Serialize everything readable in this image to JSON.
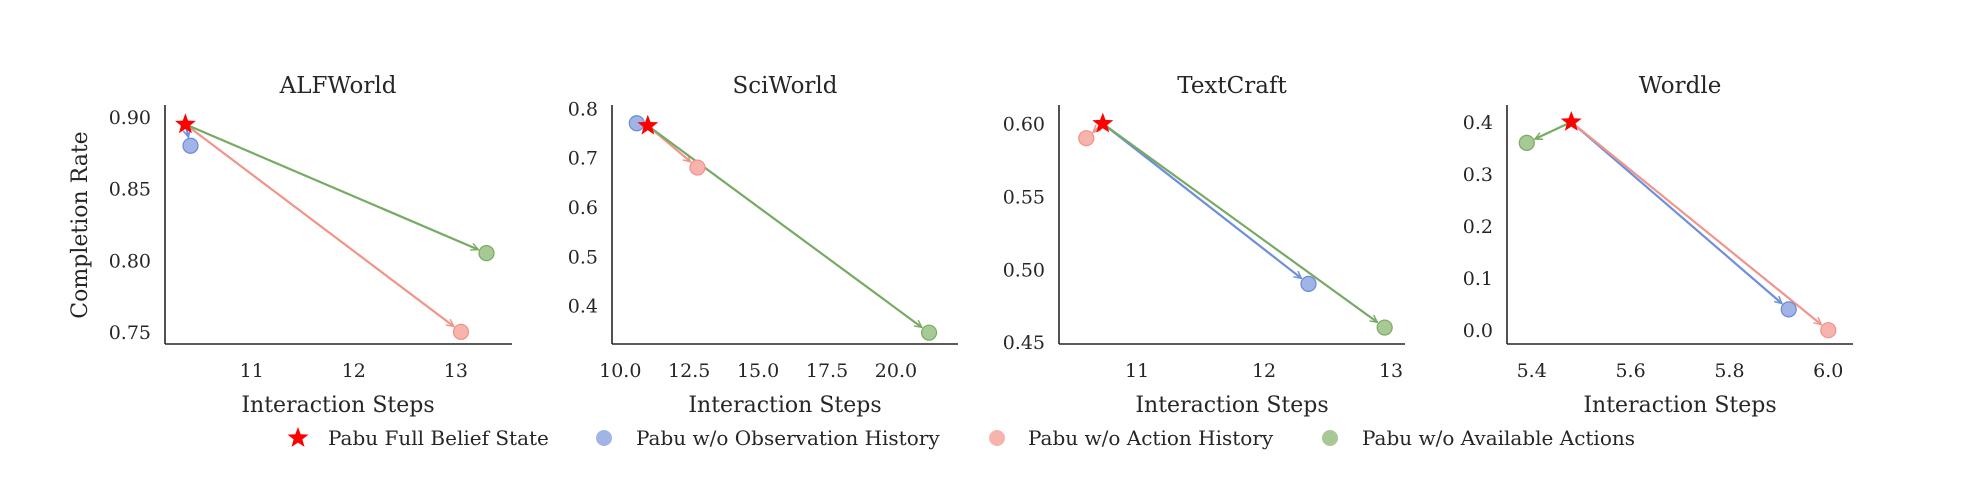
{
  "chart_data": [
    {
      "type": "scatter",
      "title": "ALFWorld",
      "xlabel": "Interaction Steps",
      "ylabel": "Completion Rate",
      "xticks": [
        11,
        12,
        13
      ],
      "xtick_labels": [
        "11",
        "12",
        "13"
      ],
      "yticks": [
        0.75,
        0.8,
        0.85,
        0.9
      ],
      "ytick_labels": [
        "0.75",
        "0.80",
        "0.85",
        "0.90"
      ],
      "xlim": [
        10.15,
        13.55
      ],
      "ylim": [
        0.7415,
        0.9085
      ],
      "grid": false,
      "series": [
        {
          "name": "Pabu Full Belief State",
          "x": 10.35,
          "y": 0.895
        },
        {
          "name": "Pabu w/o Observation History",
          "x": 10.4,
          "y": 0.88
        },
        {
          "name": "Pabu w/o Action History",
          "x": 13.05,
          "y": 0.75
        },
        {
          "name": "Pabu w/o Available Actions",
          "x": 13.3,
          "y": 0.805
        }
      ]
    },
    {
      "type": "scatter",
      "title": "SciWorld",
      "xlabel": "Interaction Steps",
      "ylabel": "",
      "xticks": [
        10.0,
        12.5,
        15.0,
        17.5,
        20.0
      ],
      "xtick_labels": [
        "10.0",
        "12.5",
        "15.0",
        "17.5",
        "20.0"
      ],
      "yticks": [
        0.4,
        0.5,
        0.6,
        0.7,
        0.8
      ],
      "ytick_labels": [
        "0.4",
        "0.5",
        "0.6",
        "0.7",
        "0.8"
      ],
      "xlim": [
        9.7,
        22.25
      ],
      "ylim": [
        0.322,
        0.807
      ],
      "grid": false,
      "series": [
        {
          "name": "Pabu Full Belief State",
          "x": 11.0,
          "y": 0.765
        },
        {
          "name": "Pabu w/o Observation History",
          "x": 10.6,
          "y": 0.77
        },
        {
          "name": "Pabu w/o Action History",
          "x": 12.8,
          "y": 0.68
        },
        {
          "name": "Pabu w/o Available Actions",
          "x": 21.2,
          "y": 0.345
        }
      ]
    },
    {
      "type": "scatter",
      "title": "TextCraft",
      "xlabel": "Interaction Steps",
      "ylabel": "",
      "xticks": [
        11,
        12,
        13
      ],
      "xtick_labels": [
        "11",
        "12",
        "13"
      ],
      "yticks": [
        0.45,
        0.5,
        0.55,
        0.6
      ],
      "ytick_labels": [
        "0.45",
        "0.50",
        "0.55",
        "0.60"
      ],
      "xlim": [
        10.385,
        13.11
      ],
      "ylim": [
        0.4487,
        0.6128
      ],
      "grid": false,
      "series": [
        {
          "name": "Pabu Full Belief State",
          "x": 10.73,
          "y": 0.6
        },
        {
          "name": "Pabu w/o Observation History",
          "x": 12.35,
          "y": 0.49
        },
        {
          "name": "Pabu w/o Action History",
          "x": 10.6,
          "y": 0.59
        },
        {
          "name": "Pabu w/o Available Actions",
          "x": 12.95,
          "y": 0.46
        }
      ]
    },
    {
      "type": "scatter",
      "title": "Wordle",
      "xlabel": "Interaction Steps",
      "ylabel": "",
      "xticks": [
        5.4,
        5.6,
        5.8,
        6.0
      ],
      "xtick_labels": [
        "5.4",
        "5.6",
        "5.8",
        "6.0"
      ],
      "yticks": [
        0.0,
        0.1,
        0.2,
        0.3,
        0.4
      ],
      "ytick_labels": [
        "0.0",
        "0.1",
        "0.2",
        "0.3",
        "0.4"
      ],
      "xlim": [
        5.35,
        6.05
      ],
      "ylim": [
        -0.0265,
        0.4327
      ],
      "grid": false,
      "series": [
        {
          "name": "Pabu Full Belief State",
          "x": 5.48,
          "y": 0.4
        },
        {
          "name": "Pabu w/o Observation History",
          "x": 5.92,
          "y": 0.04
        },
        {
          "name": "Pabu w/o Action History",
          "x": 6.0,
          "y": 0.0
        },
        {
          "name": "Pabu w/o Available Actions",
          "x": 5.39,
          "y": 0.36
        }
      ]
    }
  ],
  "legend": {
    "position": "bottom-center",
    "entries": [
      {
        "label": "Pabu Full Belief State",
        "marker": "star",
        "color": "#ff0000"
      },
      {
        "label": "Pabu w/o Observation History",
        "marker": "circle",
        "color": "#a1b4e6"
      },
      {
        "label": "Pabu w/o Action History",
        "marker": "circle",
        "color": "#f8b4ac"
      },
      {
        "label": "Pabu w/o Available Actions",
        "marker": "circle",
        "color": "#a7c995"
      }
    ]
  },
  "colors": {
    "full": "#ff0000",
    "obs_fill": "#a1b4e6",
    "obs_edge": "#6a8ad8",
    "obs_arrow": "#6e8fdc",
    "action_fill": "#f8b4ac",
    "action_edge": "#f09088",
    "action_arrow": "#f1948a",
    "avail_fill": "#a7c995",
    "avail_edge": "#78ab60",
    "avail_arrow": "#77aa62",
    "axis": "#262626"
  }
}
